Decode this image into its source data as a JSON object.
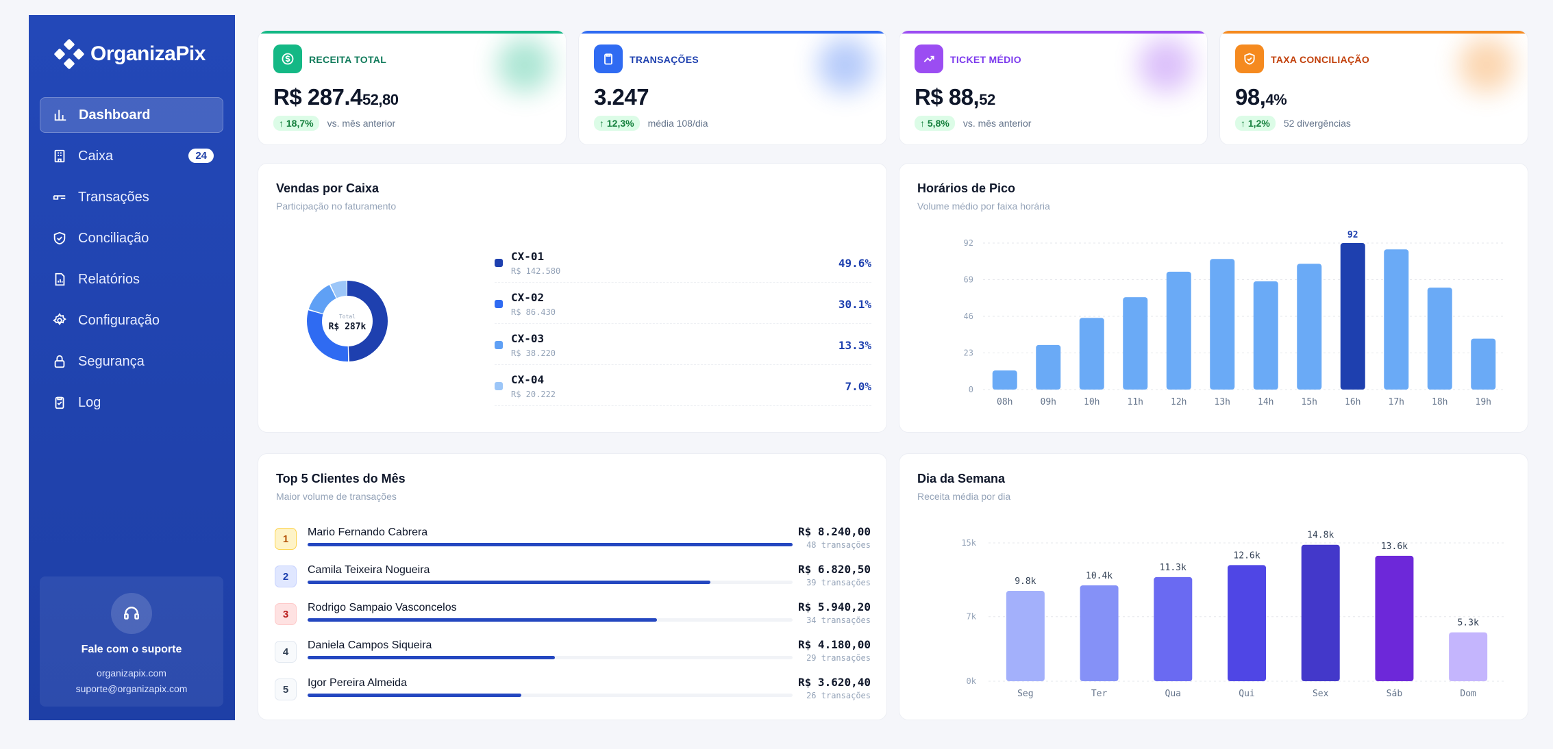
{
  "brand": {
    "name": "OrganizaPix"
  },
  "sidebar": {
    "items": [
      {
        "label": "Dashboard",
        "icon": "bar-chart-icon",
        "active": true
      },
      {
        "label": "Caixa",
        "icon": "building-icon",
        "badge": "24"
      },
      {
        "label": "Transações",
        "icon": "transfer-icon"
      },
      {
        "label": "Conciliação",
        "icon": "shield-check-icon"
      },
      {
        "label": "Relatórios",
        "icon": "report-icon"
      },
      {
        "label": "Configuração",
        "icon": "gear-icon"
      },
      {
        "label": "Segurança",
        "icon": "lock-icon"
      },
      {
        "label": "Log",
        "icon": "clipboard-icon"
      }
    ],
    "support": {
      "title": "Fale com o suporte",
      "site": "organizapix.com",
      "email": "suporte@organizapix.com"
    }
  },
  "kpis": [
    {
      "label": "RECEITA TOTAL",
      "value": "R$ 287.4",
      "value_small": "52,80",
      "delta": "↑ 18,7%",
      "note": "vs. mês anterior",
      "color": "#14b885",
      "label_color": "#0f7a5a"
    },
    {
      "label": "TRANSAÇÕES",
      "value": "3.247",
      "value_small": "",
      "delta": "↑ 12,3%",
      "note": "média 108/dia",
      "color": "#2f6bf2",
      "label_color": "#1e40af"
    },
    {
      "label": "TICKET MÉDIO",
      "value": "R$ 88,",
      "value_small": "52",
      "delta": "↑ 5,8%",
      "note": "vs. mês anterior",
      "color": "#9b4df2",
      "label_color": "#7c3aed"
    },
    {
      "label": "TAXA CONCILIAÇÃO",
      "value": "98,",
      "value_small": "4%",
      "delta": "↑ 1,2%",
      "note": "52 divergências",
      "color": "#f58a1f",
      "label_color": "#c2410c"
    }
  ],
  "vendas": {
    "title": "Vendas por Caixa",
    "subtitle": "Participação no faturamento",
    "center_label": "Total",
    "center_value": "R$ 287k"
  },
  "pico": {
    "title": "Horários de Pico",
    "subtitle": "Volume médio por faixa horária"
  },
  "clientes": {
    "title": "Top 5 Clientes do Mês",
    "subtitle": "Maior volume de transações",
    "rows": [
      {
        "rank": "1",
        "name": "Mario Fernando Cabrera",
        "amount": "R$ 8.240,00",
        "tx": "48 transações",
        "share": 1.0
      },
      {
        "rank": "2",
        "name": "Camila Teixeira Nogueira",
        "amount": "R$ 6.820,50",
        "tx": "39 transações",
        "share": 0.83
      },
      {
        "rank": "3",
        "name": "Rodrigo Sampaio Vasconcelos",
        "amount": "R$ 5.940,20",
        "tx": "34 transações",
        "share": 0.72
      },
      {
        "rank": "4",
        "name": "Daniela Campos Siqueira",
        "amount": "R$ 4.180,00",
        "tx": "29 transações",
        "share": 0.51
      },
      {
        "rank": "5",
        "name": "Igor Pereira Almeida",
        "amount": "R$ 3.620,40",
        "tx": "26 transações",
        "share": 0.44
      }
    ]
  },
  "semana": {
    "title": "Dia da Semana",
    "subtitle": "Receita média por dia"
  },
  "chart_data": [
    {
      "type": "pie",
      "categories": [
        "CX-01",
        "CX-02",
        "CX-03",
        "CX-04"
      ],
      "amounts": [
        "R$ 142.580",
        "R$ 86.430",
        "R$ 38.220",
        "R$ 20.222"
      ],
      "labels": [
        "49.6%",
        "30.1%",
        "13.3%",
        "7.0%"
      ],
      "values": [
        49.6,
        30.1,
        13.3,
        7.0
      ],
      "colors": [
        "#1e40af",
        "#2f6bf2",
        "#5fa0f5",
        "#9cc6f8"
      ]
    },
    {
      "type": "bar",
      "categories": [
        "08h",
        "09h",
        "10h",
        "11h",
        "12h",
        "13h",
        "14h",
        "15h",
        "16h",
        "17h",
        "18h",
        "19h"
      ],
      "values": [
        12,
        28,
        45,
        58,
        74,
        82,
        68,
        79,
        92,
        88,
        64,
        32
      ],
      "ylim": [
        0,
        92
      ],
      "yticks": [
        "0",
        "23",
        "46",
        "69",
        "92"
      ],
      "highlight_index": 8,
      "highlight_label": "92",
      "colors": {
        "bar": "#6aaaf6",
        "highlight": "#1e40af"
      }
    },
    {
      "type": "bar",
      "categories": [
        "Seg",
        "Ter",
        "Qua",
        "Qui",
        "Sex",
        "Sáb",
        "Dom"
      ],
      "values": [
        9.8,
        10.4,
        11.3,
        12.6,
        14.8,
        13.6,
        5.3
      ],
      "labels": [
        "9.8k",
        "10.4k",
        "11.3k",
        "12.6k",
        "14.8k",
        "13.6k",
        "5.3k"
      ],
      "ylim": [
        0,
        15
      ],
      "yticks": [
        "0k",
        "7k",
        "15k"
      ],
      "colors": [
        "#a3b0fb",
        "#8591f7",
        "#6a6af2",
        "#4f46e5",
        "#4338ca",
        "#6d28d9",
        "#c4b5fd"
      ]
    }
  ]
}
